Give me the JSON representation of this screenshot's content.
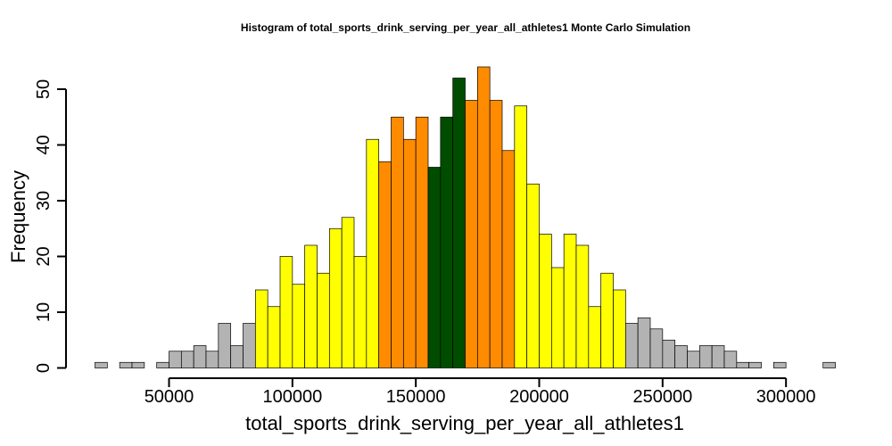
{
  "chart_data": {
    "type": "bar",
    "title": "Histogram of  total_sports_drink_serving_per_year_all_athletes1  Monte Carlo Simulation",
    "xlabel": "total_sports_drink_serving_per_year_all_athletes1",
    "ylabel": "Frequency",
    "bin_width": 5000,
    "xlim": [
      20000,
      320000
    ],
    "ylim": [
      0,
      54
    ],
    "xticks": [
      {
        "value": 50000,
        "label": "50000"
      },
      {
        "value": 100000,
        "label": "100000"
      },
      {
        "value": 150000,
        "label": "150000"
      },
      {
        "value": 200000,
        "label": "200000"
      },
      {
        "value": 250000,
        "label": "250000"
      },
      {
        "value": 300000,
        "label": "300000"
      }
    ],
    "yticks": [
      {
        "value": 0,
        "label": "0"
      },
      {
        "value": 10,
        "label": "10"
      },
      {
        "value": 20,
        "label": "20"
      },
      {
        "value": 30,
        "label": "30"
      },
      {
        "value": 40,
        "label": "40"
      },
      {
        "value": 50,
        "label": "50"
      }
    ],
    "colors": {
      "outer": "#b3b3b3",
      "band1": "#ffff00",
      "band2": "#ff8c00",
      "center": "#004d00"
    },
    "grid": false,
    "bins": [
      {
        "start": 20000,
        "end": 25000,
        "count": 1,
        "color": "outer"
      },
      {
        "start": 25000,
        "end": 30000,
        "count": 0,
        "color": "outer"
      },
      {
        "start": 30000,
        "end": 35000,
        "count": 1,
        "color": "outer"
      },
      {
        "start": 35000,
        "end": 40000,
        "count": 1,
        "color": "outer"
      },
      {
        "start": 40000,
        "end": 45000,
        "count": 0,
        "color": "outer"
      },
      {
        "start": 45000,
        "end": 50000,
        "count": 1,
        "color": "outer"
      },
      {
        "start": 50000,
        "end": 55000,
        "count": 3,
        "color": "outer"
      },
      {
        "start": 55000,
        "end": 60000,
        "count": 3,
        "color": "outer"
      },
      {
        "start": 60000,
        "end": 65000,
        "count": 4,
        "color": "outer"
      },
      {
        "start": 65000,
        "end": 70000,
        "count": 3,
        "color": "outer"
      },
      {
        "start": 70000,
        "end": 75000,
        "count": 8,
        "color": "outer"
      },
      {
        "start": 75000,
        "end": 80000,
        "count": 4,
        "color": "outer"
      },
      {
        "start": 80000,
        "end": 85000,
        "count": 8,
        "color": "outer"
      },
      {
        "start": 85000,
        "end": 90000,
        "count": 14,
        "color": "band1"
      },
      {
        "start": 90000,
        "end": 95000,
        "count": 11,
        "color": "band1"
      },
      {
        "start": 95000,
        "end": 100000,
        "count": 20,
        "color": "band1"
      },
      {
        "start": 100000,
        "end": 105000,
        "count": 15,
        "color": "band1"
      },
      {
        "start": 105000,
        "end": 110000,
        "count": 22,
        "color": "band1"
      },
      {
        "start": 110000,
        "end": 115000,
        "count": 17,
        "color": "band1"
      },
      {
        "start": 115000,
        "end": 120000,
        "count": 25,
        "color": "band1"
      },
      {
        "start": 120000,
        "end": 125000,
        "count": 27,
        "color": "band1"
      },
      {
        "start": 125000,
        "end": 130000,
        "count": 20,
        "color": "band1"
      },
      {
        "start": 130000,
        "end": 135000,
        "count": 41,
        "color": "band1"
      },
      {
        "start": 135000,
        "end": 140000,
        "count": 37,
        "color": "band2"
      },
      {
        "start": 140000,
        "end": 145000,
        "count": 45,
        "color": "band2"
      },
      {
        "start": 145000,
        "end": 150000,
        "count": 41,
        "color": "band2"
      },
      {
        "start": 150000,
        "end": 155000,
        "count": 45,
        "color": "band2"
      },
      {
        "start": 155000,
        "end": 160000,
        "count": 36,
        "color": "center"
      },
      {
        "start": 160000,
        "end": 165000,
        "count": 45,
        "color": "center"
      },
      {
        "start": 165000,
        "end": 170000,
        "count": 52,
        "color": "center"
      },
      {
        "start": 170000,
        "end": 175000,
        "count": 48,
        "color": "band2"
      },
      {
        "start": 175000,
        "end": 180000,
        "count": 54,
        "color": "band2"
      },
      {
        "start": 180000,
        "end": 185000,
        "count": 48,
        "color": "band2"
      },
      {
        "start": 185000,
        "end": 190000,
        "count": 39,
        "color": "band2"
      },
      {
        "start": 190000,
        "end": 195000,
        "count": 47,
        "color": "band1"
      },
      {
        "start": 195000,
        "end": 200000,
        "count": 33,
        "color": "band1"
      },
      {
        "start": 200000,
        "end": 205000,
        "count": 24,
        "color": "band1"
      },
      {
        "start": 205000,
        "end": 210000,
        "count": 18,
        "color": "band1"
      },
      {
        "start": 210000,
        "end": 215000,
        "count": 24,
        "color": "band1"
      },
      {
        "start": 215000,
        "end": 220000,
        "count": 22,
        "color": "band1"
      },
      {
        "start": 220000,
        "end": 225000,
        "count": 11,
        "color": "band1"
      },
      {
        "start": 225000,
        "end": 230000,
        "count": 17,
        "color": "band1"
      },
      {
        "start": 230000,
        "end": 235000,
        "count": 14,
        "color": "band1"
      },
      {
        "start": 235000,
        "end": 240000,
        "count": 8,
        "color": "outer"
      },
      {
        "start": 240000,
        "end": 245000,
        "count": 9,
        "color": "outer"
      },
      {
        "start": 245000,
        "end": 250000,
        "count": 7,
        "color": "outer"
      },
      {
        "start": 250000,
        "end": 255000,
        "count": 5,
        "color": "outer"
      },
      {
        "start": 255000,
        "end": 260000,
        "count": 4,
        "color": "outer"
      },
      {
        "start": 260000,
        "end": 265000,
        "count": 3,
        "color": "outer"
      },
      {
        "start": 265000,
        "end": 270000,
        "count": 4,
        "color": "outer"
      },
      {
        "start": 270000,
        "end": 275000,
        "count": 4,
        "color": "outer"
      },
      {
        "start": 275000,
        "end": 280000,
        "count": 3,
        "color": "outer"
      },
      {
        "start": 280000,
        "end": 285000,
        "count": 1,
        "color": "outer"
      },
      {
        "start": 285000,
        "end": 290000,
        "count": 1,
        "color": "outer"
      },
      {
        "start": 290000,
        "end": 295000,
        "count": 0,
        "color": "outer"
      },
      {
        "start": 295000,
        "end": 300000,
        "count": 1,
        "color": "outer"
      },
      {
        "start": 300000,
        "end": 305000,
        "count": 0,
        "color": "outer"
      },
      {
        "start": 305000,
        "end": 310000,
        "count": 0,
        "color": "outer"
      },
      {
        "start": 310000,
        "end": 315000,
        "count": 0,
        "color": "outer"
      },
      {
        "start": 315000,
        "end": 320000,
        "count": 1,
        "color": "outer"
      }
    ]
  }
}
